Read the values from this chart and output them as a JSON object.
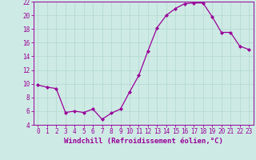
{
  "x": [
    0,
    1,
    2,
    3,
    4,
    5,
    6,
    7,
    8,
    9,
    10,
    11,
    12,
    13,
    14,
    15,
    16,
    17,
    18,
    19,
    20,
    21,
    22,
    23
  ],
  "y": [
    9.8,
    9.5,
    9.3,
    5.8,
    6.0,
    5.8,
    6.3,
    4.8,
    5.7,
    6.3,
    8.8,
    11.2,
    14.8,
    18.2,
    20.0,
    21.0,
    21.7,
    21.8,
    21.8,
    19.8,
    17.5,
    17.5,
    15.5,
    15.0
  ],
  "line_color": "#990099",
  "marker": "D",
  "markersize": 2.0,
  "linewidth": 0.9,
  "xlabel": "Windchill (Refroidissement éolien,°C)",
  "xlabel_fontsize": 6.5,
  "ylim": [
    4,
    22
  ],
  "xlim": [
    -0.5,
    23.5
  ],
  "yticks": [
    4,
    6,
    8,
    10,
    12,
    14,
    16,
    18,
    20,
    22
  ],
  "xticks": [
    0,
    1,
    2,
    3,
    4,
    5,
    6,
    7,
    8,
    9,
    10,
    11,
    12,
    13,
    14,
    15,
    16,
    17,
    18,
    19,
    20,
    21,
    22,
    23
  ],
  "grid_color": "#b0d8d0",
  "bg_color": "#ceeae4",
  "tick_color": "#990099",
  "tick_fontsize": 5.5,
  "tick_label_color": "#990099"
}
